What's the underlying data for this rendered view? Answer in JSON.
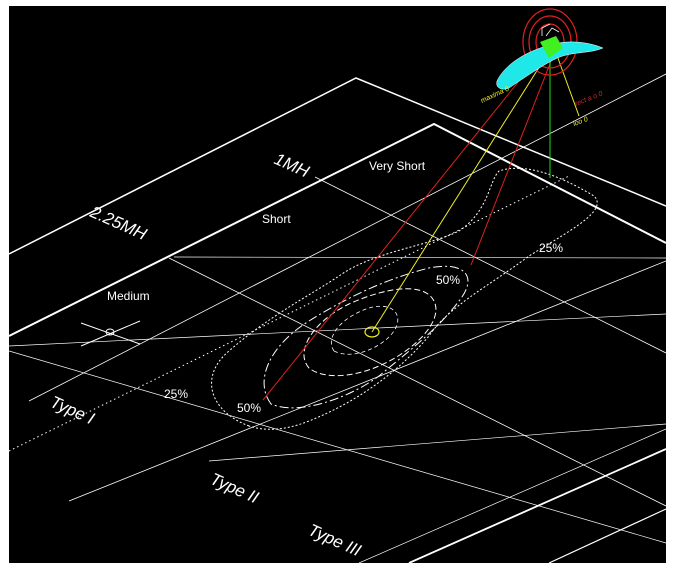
{
  "zones": {
    "very_short": "Very Short",
    "short": "Short",
    "medium": "Medium"
  },
  "mounting_heights": {
    "one_mh": "1MH",
    "two_25_mh": "2.25MH"
  },
  "types": {
    "type_i": "Type I",
    "type_ii": "Type II",
    "type_iii": "Type III"
  },
  "contours": {
    "outer_right": "25%",
    "outer_left": "25%",
    "inner_right": "50%",
    "inner_left": "50%"
  },
  "luminaire": {
    "label_yellow": "maxima 0",
    "label_red": "rect a o 0",
    "label_small": "loo 0"
  },
  "colors": {
    "background": "#000000",
    "grid": "#ffffff",
    "red_ray": "#e02020",
    "yellow_ray": "#f0f020",
    "green_ray": "#20e020",
    "cyan_lobe": "#20e8e8",
    "green_body": "#40f020"
  }
}
